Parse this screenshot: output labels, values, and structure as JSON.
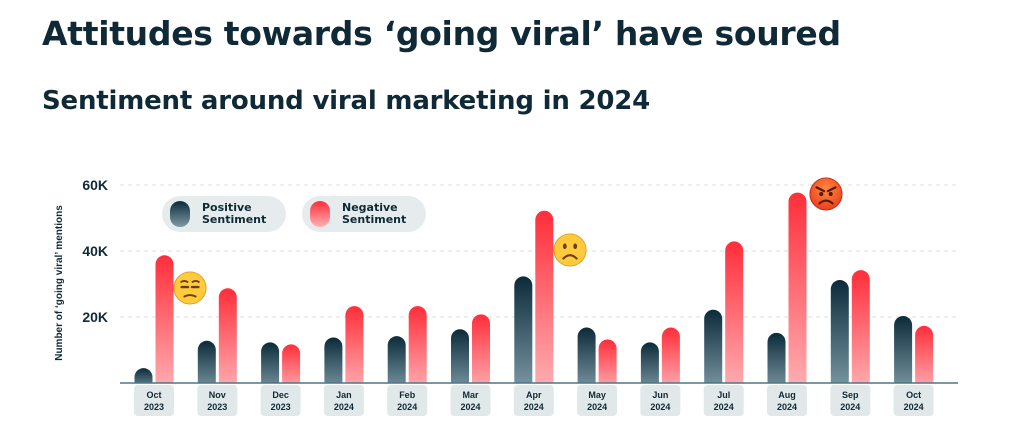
{
  "title": "Attitudes towards ‘going viral’ have soured",
  "subtitle": "Sentiment around viral marketing in 2024",
  "legend": {
    "positive": "Positive\nSentiment",
    "negative": "Negative\nSentiment"
  },
  "colors": {
    "positive_top": "#0c2b3a",
    "positive_bottom": "#7d9aa5",
    "negative_top": "#ff2e3a",
    "negative_bottom": "#ffb1b5",
    "axis": "#4f7583",
    "label_bg": "#e0e8ea",
    "grid": "#e4e4e4"
  },
  "chart_data": {
    "type": "bar",
    "ylabel": "Number of ‘going viral’ mentions",
    "ylim": [
      0,
      60000
    ],
    "yticks": [
      {
        "value": 20000,
        "label": "20K"
      },
      {
        "value": 40000,
        "label": "40K"
      },
      {
        "value": 60000,
        "label": "60K"
      }
    ],
    "grid": true,
    "legend_position": "top-left",
    "categories": [
      {
        "month": "Oct",
        "year": "2023"
      },
      {
        "month": "Nov",
        "year": "2023"
      },
      {
        "month": "Dec",
        "year": "2023"
      },
      {
        "month": "Jan",
        "year": "2024"
      },
      {
        "month": "Feb",
        "year": "2024"
      },
      {
        "month": "Mar",
        "year": "2024"
      },
      {
        "month": "Apr",
        "year": "2024"
      },
      {
        "month": "May",
        "year": "2024"
      },
      {
        "month": "Jun",
        "year": "2024"
      },
      {
        "month": "Jul",
        "year": "2024"
      },
      {
        "month": "Aug",
        "year": "2024"
      },
      {
        "month": "Sep",
        "year": "2024"
      },
      {
        "month": "Oct",
        "year": "2024"
      }
    ],
    "series": [
      {
        "name": "Positive Sentiment",
        "values": [
          4500,
          12800,
          12300,
          13800,
          14200,
          16300,
          32300,
          16800,
          12300,
          22200,
          15200,
          31200,
          20300
        ]
      },
      {
        "name": "Negative Sentiment",
        "values": [
          38700,
          28700,
          11700,
          23300,
          23300,
          20800,
          52200,
          13200,
          16800,
          42900,
          57700,
          34200,
          17300
        ]
      }
    ],
    "annotations": [
      {
        "type": "emoji",
        "name": "unamused-face-emoji",
        "category": 0
      },
      {
        "type": "emoji",
        "name": "frowning-face-emoji",
        "category": 6
      },
      {
        "type": "emoji",
        "name": "angry-face-emoji",
        "category": 10
      }
    ]
  }
}
